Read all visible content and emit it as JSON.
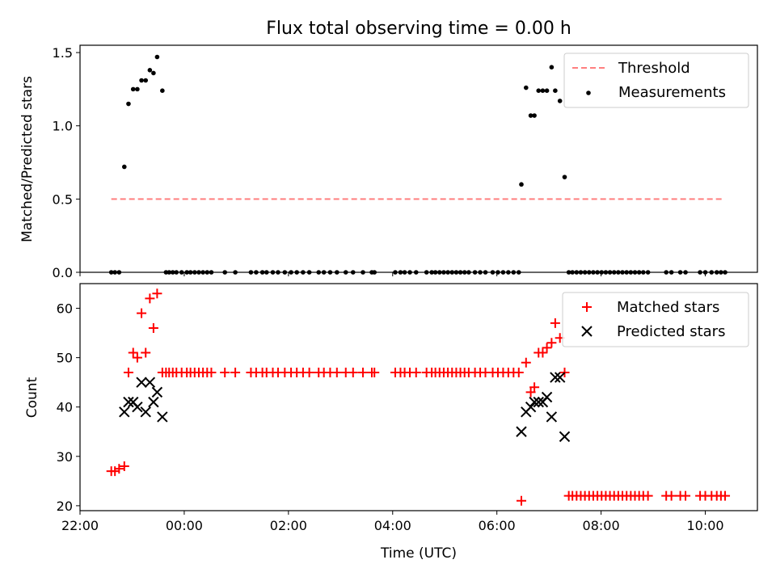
{
  "chart_data": [
    {
      "type": "scatter",
      "title": "Flux total observing time = 0.00 h",
      "ylabel": "Matched/Predicted stars",
      "xlabel": "",
      "xlim": [
        -2.0,
        11.0
      ],
      "ylim": [
        0.0,
        1.55
      ],
      "xticks": [
        {
          "value": -2,
          "label": "22:00"
        },
        {
          "value": 0,
          "label": "00:00"
        },
        {
          "value": 2,
          "label": "02:00"
        },
        {
          "value": 4,
          "label": "04:00"
        },
        {
          "value": 6,
          "label": "06:00"
        },
        {
          "value": 8,
          "label": "08:00"
        },
        {
          "value": 10,
          "label": "10:00"
        }
      ],
      "yticks": [
        {
          "value": 0.0,
          "label": "0.0"
        },
        {
          "value": 0.5,
          "label": "0.5"
        },
        {
          "value": 1.0,
          "label": "1.0"
        },
        {
          "value": 1.5,
          "label": "1.5"
        }
      ],
      "legend": {
        "position": "top-right",
        "entries": [
          "Threshold",
          "Measurements"
        ]
      },
      "series": [
        {
          "name": "Threshold",
          "style": "dashed-line",
          "color": "#ff7f7f",
          "x": [
            -1.4,
            10.35
          ],
          "y": [
            0.5,
            0.5
          ]
        },
        {
          "name": "Measurements",
          "style": "dot",
          "color": "#000000",
          "x": [
            -1.4,
            -1.33,
            -1.25,
            -1.15,
            -1.07,
            -0.98,
            -0.9,
            -0.82,
            -0.74,
            -0.66,
            -0.59,
            -0.52,
            -0.42,
            -0.35,
            -0.29,
            -0.22,
            -0.15,
            -0.05,
            0.05,
            0.12,
            0.2,
            0.28,
            0.36,
            0.44,
            0.52,
            0.78,
            0.98,
            1.28,
            1.38,
            1.5,
            1.58,
            1.7,
            1.8,
            1.93,
            2.05,
            2.16,
            2.28,
            2.4,
            2.58,
            2.68,
            2.8,
            2.93,
            3.1,
            3.24,
            3.43,
            3.6,
            3.65,
            4.05,
            4.15,
            4.23,
            4.33,
            4.45,
            4.65,
            4.75,
            4.82,
            4.9,
            4.98,
            5.06,
            5.14,
            5.22,
            5.3,
            5.38,
            5.46,
            5.58,
            5.68,
            5.78,
            5.92,
            6.02,
            6.12,
            6.22,
            6.32,
            6.42,
            6.47,
            6.56,
            6.65,
            6.72,
            6.8,
            6.88,
            6.96,
            7.05,
            7.12,
            7.21,
            7.3,
            7.38,
            7.45,
            7.53,
            7.61,
            7.69,
            7.77,
            7.85,
            7.93,
            8.01,
            8.09,
            8.17,
            8.25,
            8.33,
            8.41,
            8.49,
            8.57,
            8.65,
            8.73,
            8.81,
            8.9,
            9.25,
            9.35,
            9.52,
            9.62,
            9.9,
            10.0,
            10.12,
            10.22,
            10.3,
            10.38
          ],
          "y": [
            0.0,
            0.0,
            0.0,
            0.72,
            1.15,
            1.25,
            1.25,
            1.31,
            1.31,
            1.38,
            1.36,
            1.47,
            1.24,
            0.0,
            0.0,
            0.0,
            0.0,
            0.0,
            0.0,
            0.0,
            0.0,
            0.0,
            0.0,
            0.0,
            0.0,
            0.0,
            0.0,
            0.0,
            0.0,
            0.0,
            0.0,
            0.0,
            0.0,
            0.0,
            0.0,
            0.0,
            0.0,
            0.0,
            0.0,
            0.0,
            0.0,
            0.0,
            0.0,
            0.0,
            0.0,
            0.0,
            0.0,
            0.0,
            0.0,
            0.0,
            0.0,
            0.0,
            0.0,
            0.0,
            0.0,
            0.0,
            0.0,
            0.0,
            0.0,
            0.0,
            0.0,
            0.0,
            0.0,
            0.0,
            0.0,
            0.0,
            0.0,
            0.0,
            0.0,
            0.0,
            0.0,
            0.0,
            0.6,
            1.26,
            1.07,
            1.07,
            1.24,
            1.24,
            1.24,
            1.4,
            1.24,
            1.17,
            0.65,
            0.0,
            0.0,
            0.0,
            0.0,
            0.0,
            0.0,
            0.0,
            0.0,
            0.0,
            0.0,
            0.0,
            0.0,
            0.0,
            0.0,
            0.0,
            0.0,
            0.0,
            0.0,
            0.0,
            0.0,
            0.0,
            0.0,
            0.0,
            0.0,
            0.0,
            0.0,
            0.0,
            0.0,
            0.0,
            0.0
          ]
        }
      ]
    },
    {
      "type": "scatter",
      "title": "",
      "ylabel": "Count",
      "xlabel": "Time (UTC)",
      "xlim": [
        -2.0,
        11.0
      ],
      "ylim": [
        19.0,
        65.0
      ],
      "xticks": [
        {
          "value": -2,
          "label": "22:00"
        },
        {
          "value": 0,
          "label": "00:00"
        },
        {
          "value": 2,
          "label": "02:00"
        },
        {
          "value": 4,
          "label": "04:00"
        },
        {
          "value": 6,
          "label": "06:00"
        },
        {
          "value": 8,
          "label": "08:00"
        },
        {
          "value": 10,
          "label": "10:00"
        }
      ],
      "yticks": [
        {
          "value": 20,
          "label": "20"
        },
        {
          "value": 30,
          "label": "30"
        },
        {
          "value": 40,
          "label": "40"
        },
        {
          "value": 50,
          "label": "50"
        },
        {
          "value": 60,
          "label": "60"
        }
      ],
      "legend": {
        "position": "top-right",
        "entries": [
          "Matched stars",
          "Predicted stars"
        ]
      },
      "series": [
        {
          "name": "Matched stars",
          "style": "plus",
          "color": "#ff0000",
          "x": [
            -1.4,
            -1.33,
            -1.25,
            -1.15,
            -1.07,
            -0.98,
            -0.9,
            -0.82,
            -0.74,
            -0.66,
            -0.59,
            -0.52,
            -0.42,
            -0.35,
            -0.29,
            -0.22,
            -0.15,
            -0.05,
            0.05,
            0.12,
            0.2,
            0.28,
            0.36,
            0.44,
            0.52,
            0.78,
            0.98,
            1.28,
            1.38,
            1.5,
            1.58,
            1.7,
            1.8,
            1.93,
            2.05,
            2.16,
            2.28,
            2.4,
            2.58,
            2.68,
            2.8,
            2.93,
            3.1,
            3.24,
            3.43,
            3.6,
            3.65,
            4.05,
            4.15,
            4.23,
            4.33,
            4.45,
            4.65,
            4.75,
            4.82,
            4.9,
            4.98,
            5.06,
            5.14,
            5.22,
            5.3,
            5.38,
            5.46,
            5.58,
            5.68,
            5.78,
            5.92,
            6.02,
            6.12,
            6.22,
            6.32,
            6.42,
            6.47,
            6.56,
            6.65,
            6.72,
            6.8,
            6.88,
            6.96,
            7.05,
            7.12,
            7.21,
            7.3,
            7.38,
            7.45,
            7.53,
            7.61,
            7.69,
            7.77,
            7.85,
            7.93,
            8.01,
            8.09,
            8.17,
            8.25,
            8.33,
            8.41,
            8.49,
            8.57,
            8.65,
            8.73,
            8.81,
            8.9,
            9.25,
            9.35,
            9.52,
            9.62,
            9.9,
            10.0,
            10.12,
            10.22,
            10.3,
            10.38
          ],
          "y": [
            27,
            27,
            27.5,
            28,
            47,
            51,
            50,
            59,
            51,
            62,
            56,
            63,
            47,
            47,
            47,
            47,
            47,
            47,
            47,
            47,
            47,
            47,
            47,
            47,
            47,
            47,
            47,
            47,
            47,
            47,
            47,
            47,
            47,
            47,
            47,
            47,
            47,
            47,
            47,
            47,
            47,
            47,
            47,
            47,
            47,
            47,
            47,
            47,
            47,
            47,
            47,
            47,
            47,
            47,
            47,
            47,
            47,
            47,
            47,
            47,
            47,
            47,
            47,
            47,
            47,
            47,
            47,
            47,
            47,
            47,
            47,
            47,
            21,
            49,
            43,
            44,
            51,
            51,
            52,
            53,
            57,
            54,
            47,
            22,
            22,
            22,
            22,
            22,
            22,
            22,
            22,
            22,
            22,
            22,
            22,
            22,
            22,
            22,
            22,
            22,
            22,
            22,
            22,
            22,
            22,
            22,
            22,
            22,
            22,
            22,
            22,
            22,
            22
          ]
        },
        {
          "name": "Predicted stars",
          "style": "x",
          "color": "#000000",
          "x": [
            -1.15,
            -1.07,
            -0.98,
            -0.9,
            -0.82,
            -0.74,
            -0.66,
            -0.59,
            -0.52,
            -0.42,
            6.47,
            6.56,
            6.65,
            6.72,
            6.8,
            6.88,
            6.96,
            7.05,
            7.12,
            7.21,
            7.3
          ],
          "y": [
            39,
            41,
            41,
            40,
            45,
            39,
            45,
            41,
            43,
            38,
            35,
            39,
            40,
            41,
            41,
            41,
            42,
            38,
            46,
            46,
            34
          ]
        }
      ]
    }
  ]
}
